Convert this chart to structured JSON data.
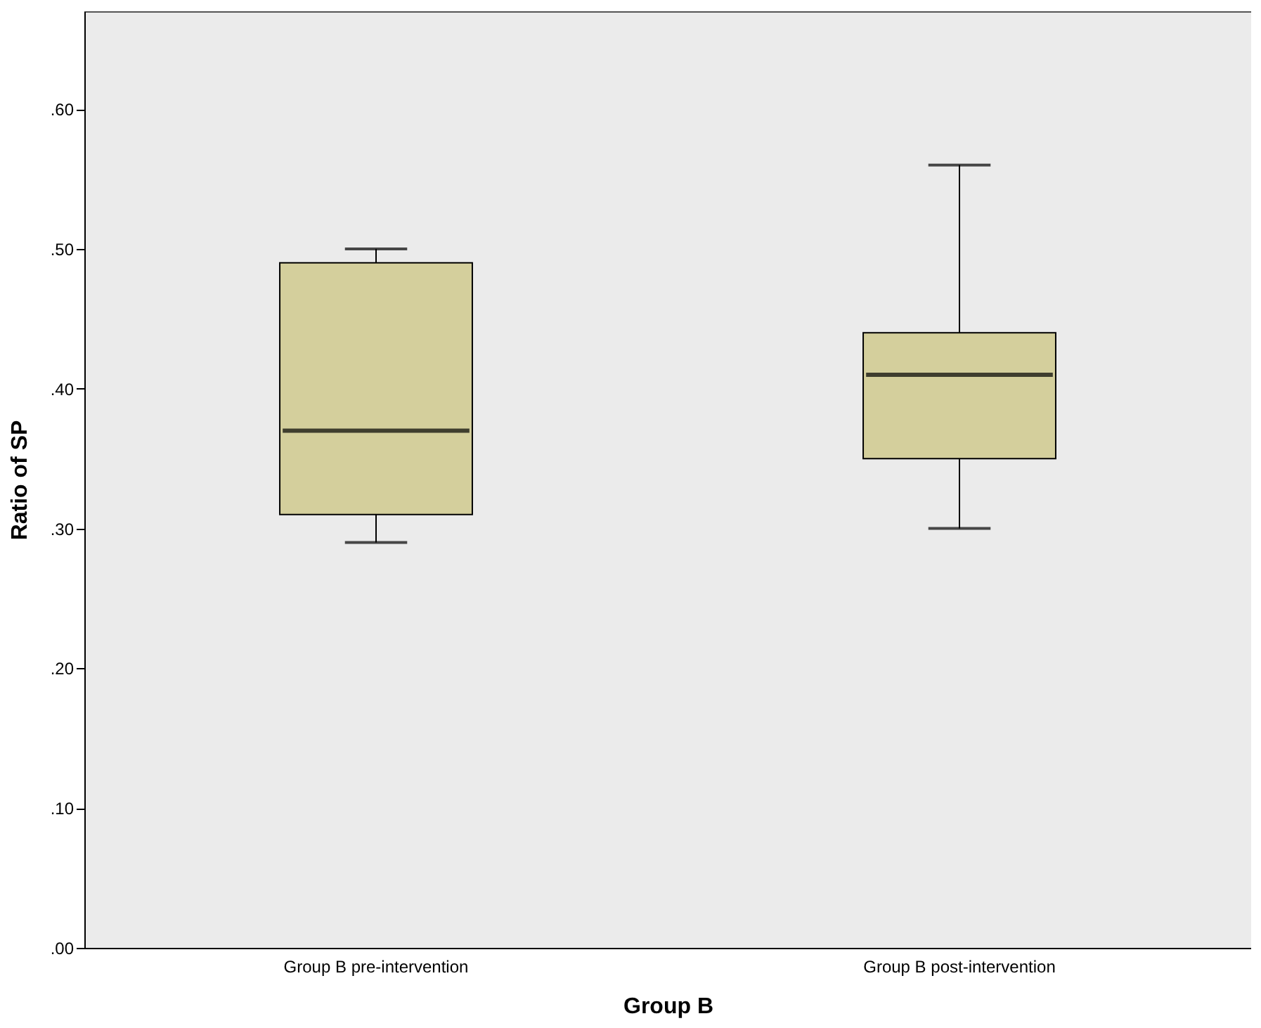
{
  "chart_data": {
    "type": "box",
    "xlabel": "Group B",
    "ylabel": "Ratio of SP",
    "categories": [
      "Group B pre-intervention",
      "Group B post-intervention"
    ],
    "series": [
      {
        "color": "#d4cf9c",
        "boxes": [
          {
            "low": 0.29,
            "q1": 0.31,
            "median": 0.37,
            "q3": 0.49,
            "high": 0.5
          },
          {
            "low": 0.3,
            "q1": 0.35,
            "median": 0.41,
            "q3": 0.44,
            "high": 0.56
          }
        ]
      }
    ],
    "ylim": [
      0,
      0.67
    ],
    "yticks": [
      {
        "value": 0,
        "label": ".00"
      },
      {
        "value": 0.1,
        "label": ".10"
      },
      {
        "value": 0.2,
        "label": ".20"
      },
      {
        "value": 0.3,
        "label": ".30"
      },
      {
        "value": 0.4,
        "label": ".40"
      },
      {
        "value": 0.5,
        "label": ".50"
      },
      {
        "value": 0.6,
        "label": ".60"
      }
    ],
    "grid": false
  }
}
